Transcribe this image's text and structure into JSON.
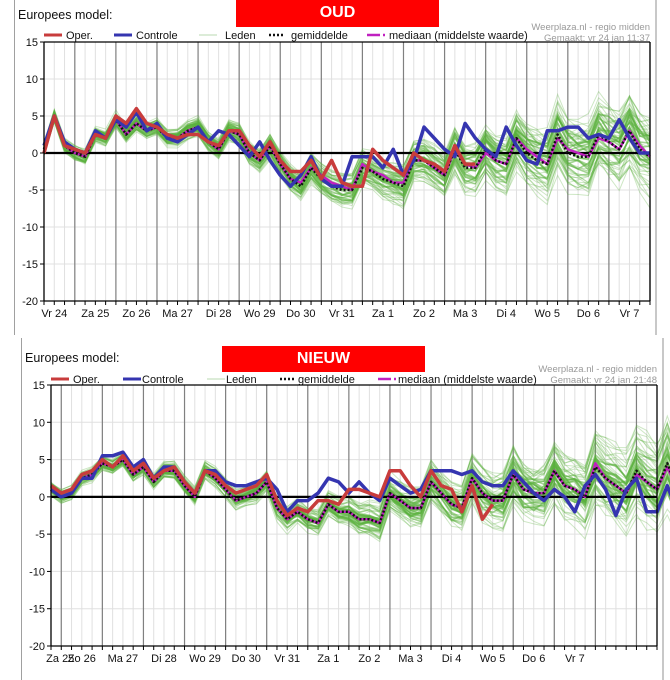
{
  "panels": [
    {
      "id": "oud",
      "model_label": "Europees model:",
      "banner": "OUD",
      "credit_line1": "Weerplaza.nl - regio midden",
      "credit_line2": "Gemaakt: vr 24 jan 11:37"
    },
    {
      "id": "nieuw",
      "model_label": "Europees model:",
      "banner": "NIEUW",
      "credit_line1": "Weerplaza.nl - regio midden",
      "credit_line2": "Gemaakt: vr 24 jan 21:48"
    }
  ],
  "legend": {
    "oper": "Oper.",
    "controle": "Controle",
    "leden": "Leden",
    "gemiddelde": "gemiddelde",
    "mediaan": "mediaan (middelste waarde)"
  },
  "colors": {
    "banner": "#ff0000",
    "oper": "#c83c3c",
    "controle": "#3535b0",
    "leden": "#5ab03c",
    "leden_legend": "#b8d8b0",
    "gemiddelde": "#111111",
    "mediaan": "#c020c0",
    "zero_line": "#000000",
    "grid_minor": "#e0e0e0",
    "grid_day": "#808080"
  },
  "chart_data": [
    {
      "type": "line",
      "title": "OUD",
      "xlabel": "",
      "ylabel": "",
      "ylim": [
        -20,
        15
      ],
      "yticks": [
        15,
        10,
        5,
        0,
        -5,
        -10,
        -15,
        -20
      ],
      "x_step": "6h",
      "x_start_offset_steps": -3,
      "days": [
        "Vr 24",
        "Za 25",
        "Zo 26",
        "Ma 27",
        "Di 28",
        "Wo 29",
        "Do 30",
        "Vr 31",
        "Za 1",
        "Zo 2",
        "Ma 3",
        "Di 4",
        "Wo 5",
        "Do 6",
        "Vr 7"
      ],
      "grid": true,
      "legend_position": "top",
      "series": [
        {
          "name": "Oper.",
          "values": [
            0,
            5,
            1,
            0.5,
            0,
            2.5,
            2,
            5,
            4,
            6,
            4,
            3.5,
            2.5,
            2,
            2.5,
            2.5,
            1.5,
            1,
            3,
            3,
            1,
            -0.5,
            1.5,
            -1,
            -2.5,
            -2.5,
            -1,
            -3.5,
            -1,
            -4,
            -4.5,
            -4.5,
            0.5,
            -1,
            -2,
            -3,
            0,
            -1,
            -1.5,
            -2.5,
            1,
            -1.5,
            -1.5
          ]
        },
        {
          "name": "Controle",
          "values": [
            1,
            5,
            1.5,
            0.5,
            0,
            3,
            2,
            4.5,
            3.5,
            5.5,
            3,
            4,
            2,
            1.5,
            2.5,
            3.5,
            1.5,
            3,
            2.5,
            1,
            -0.5,
            1.5,
            -1,
            -3,
            -4.5,
            -3,
            -0.5,
            -3.5,
            -4.5,
            -4.5,
            -0.5,
            -0.5,
            -0.5,
            -2,
            0.5,
            -3,
            -1,
            3.5,
            2,
            0.5,
            -0.5,
            4,
            2,
            0.5,
            -0.5,
            3.5,
            1,
            -1,
            -1.5,
            3,
            3,
            3.5,
            3.5,
            2,
            2.5,
            2,
            4.5,
            2,
            0,
            0
          ]
        },
        {
          "name": "gemiddelde",
          "values": [
            0.5,
            5,
            1,
            0,
            -0.5,
            2.5,
            2,
            4.5,
            2.5,
            4,
            3,
            3.5,
            2,
            2,
            3,
            3.5,
            1.5,
            0.5,
            3,
            2.5,
            0,
            -1,
            1,
            -1.5,
            -3.5,
            -4.5,
            -2,
            -3.5,
            -4.5,
            -5,
            -5,
            -2,
            -2.5,
            -3.5,
            -4,
            -4.5,
            -1,
            -1,
            -2,
            -3,
            0.5,
            -2,
            -2,
            0.5,
            -1,
            -1.5,
            2,
            0,
            -1,
            -1.5,
            2.5,
            0,
            -0.5,
            -0.5,
            2.5,
            1.5,
            0.5,
            3,
            0.5,
            -0.5
          ]
        },
        {
          "name": "mediaan",
          "values": [
            0.5,
            5,
            1,
            0,
            -0.5,
            2.5,
            2,
            4.5,
            2.5,
            4,
            3,
            3.5,
            2,
            2,
            3,
            3.5,
            1.5,
            0.5,
            3,
            2.5,
            0,
            -1,
            1,
            -1.5,
            -3.5,
            -4,
            -2,
            -3,
            -4,
            -4.5,
            -5,
            -1.5,
            -2.5,
            -3,
            -4,
            -4,
            -1,
            -1,
            -2,
            -3,
            0.5,
            -1.5,
            -2,
            0,
            -1,
            -1.5,
            2,
            0.5,
            -0.5,
            -1.5,
            2,
            0.5,
            0,
            -0.5,
            2,
            1.5,
            0.5,
            3,
            1,
            -0.5
          ]
        }
      ],
      "leden": {
        "count": 50,
        "spread_start": 1.5,
        "spread_end": 9,
        "note": "approximate ensemble envelope around gemiddelde"
      }
    },
    {
      "type": "line",
      "title": "NIEUW",
      "xlabel": "",
      "ylabel": "",
      "ylim": [
        -20,
        15
      ],
      "yticks": [
        15,
        10,
        5,
        0,
        -5,
        -10,
        -15,
        -20
      ],
      "x_step": "6h",
      "x_start_offset_steps": -1,
      "days": [
        "Za 25",
        "Zo 26",
        "Ma 27",
        "Di 28",
        "Wo 29",
        "Do 30",
        "Vr 31",
        "Za 1",
        "Zo 2",
        "Ma 3",
        "Di 4",
        "Wo 5",
        "Do 6",
        "Vr 7"
      ],
      "grid": true,
      "legend_position": "top",
      "series": [
        {
          "name": "Oper.",
          "values": [
            1.5,
            0.5,
            1,
            3,
            3.5,
            5,
            4,
            5.5,
            3.5,
            4.5,
            2.5,
            3.5,
            4,
            2,
            0.5,
            3.5,
            3,
            1.5,
            0.5,
            1,
            1.5,
            3,
            -0.5,
            -2.5,
            -1.5,
            -2,
            -0.5,
            -0.5,
            -1,
            1,
            1,
            0.5,
            0,
            3.5,
            3.5,
            1.5,
            0,
            3.5,
            1.5,
            1,
            -2,
            1.5,
            -3,
            -1
          ]
        },
        {
          "name": "Controle",
          "values": [
            1,
            0,
            0.5,
            2.5,
            2.5,
            5.5,
            5.5,
            6,
            4,
            5,
            2.5,
            4,
            4,
            2,
            0.5,
            3.5,
            3.5,
            2,
            1.5,
            1.5,
            2,
            2.5,
            1,
            -2,
            -0.5,
            -0.5,
            0.5,
            2.5,
            2,
            0.5,
            2,
            0.5,
            -0.5,
            2.5,
            1.5,
            0.5,
            1,
            3.5,
            3.5,
            3.5,
            3,
            3.5,
            2,
            1.5,
            1.5,
            3.5,
            2,
            0.5,
            -0.5,
            1,
            0,
            -2,
            1.5,
            3,
            1,
            -2.5,
            1,
            2.5,
            -2,
            -2,
            1.5,
            -2
          ]
        },
        {
          "name": "gemiddelde",
          "values": [
            1,
            0,
            0.5,
            2.5,
            3,
            4.5,
            4,
            5,
            3,
            4,
            2,
            3.5,
            3.5,
            1.5,
            0,
            3.5,
            2.5,
            1,
            -0.5,
            0,
            0.5,
            2,
            -1.5,
            -3,
            -2,
            -3,
            -3.5,
            -1,
            -2,
            -2,
            -3,
            -3,
            -3.5,
            0.5,
            -0.5,
            -1.5,
            -1.5,
            2,
            0.5,
            -1,
            -1.5,
            2.5,
            0.5,
            -0.5,
            -0.5,
            3,
            1,
            0.5,
            0.5,
            3.5,
            1.5,
            1,
            0,
            4,
            2.5,
            1.5,
            0.5,
            3.5,
            2,
            1,
            4.5,
            1
          ]
        },
        {
          "name": "mediaan",
          "values": [
            1,
            0,
            0.5,
            2.5,
            3,
            4.5,
            4,
            5,
            3,
            4,
            2,
            3.5,
            3.5,
            1.5,
            0,
            3.5,
            2.5,
            1,
            -0.5,
            0,
            0.5,
            2,
            -1.5,
            -3,
            -2,
            -3,
            -3.5,
            -1,
            -2,
            -2,
            -3,
            -3,
            -3.5,
            0.5,
            -0.5,
            -1.5,
            -1.5,
            2,
            0.5,
            -1,
            -1.5,
            2.5,
            0.5,
            -0.5,
            -0.5,
            3,
            1,
            0.5,
            0.5,
            3.5,
            1.5,
            1,
            0,
            4.5,
            2.5,
            1.5,
            0.5,
            3,
            2,
            1,
            4,
            1
          ]
        }
      ],
      "leden": {
        "count": 50,
        "spread_start": 1.5,
        "spread_end": 10,
        "note": "approximate ensemble envelope around gemiddelde"
      }
    }
  ]
}
